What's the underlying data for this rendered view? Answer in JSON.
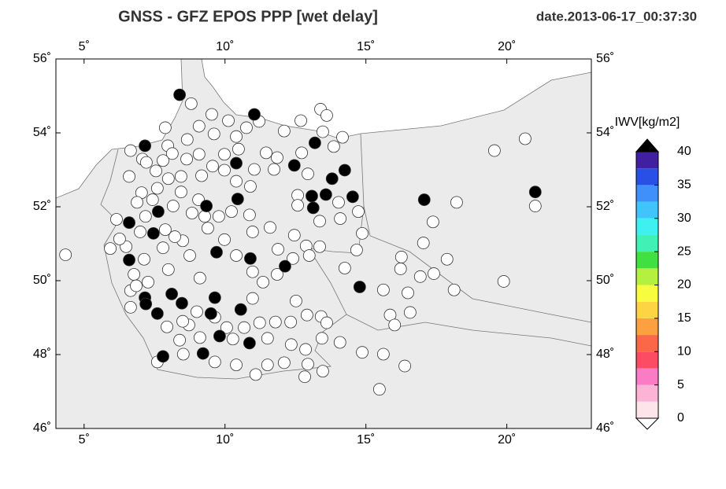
{
  "chart_data": {
    "type": "scatter",
    "title": "GNSS  -  GFZ EPOS PPP [wet delay]",
    "date": "date.2013-06-17_00:37:30",
    "xlim": [
      4,
      23
    ],
    "ylim": [
      46,
      56
    ],
    "xticks": [
      {
        "value": 5,
        "label": "5˚"
      },
      {
        "value": 10,
        "label": "10˚"
      },
      {
        "value": 15,
        "label": "15˚"
      },
      {
        "value": 20,
        "label": "20˚"
      }
    ],
    "yticks": [
      {
        "value": 46,
        "label": "46˚"
      },
      {
        "value": 48,
        "label": "48˚"
      },
      {
        "value": 50,
        "label": "50˚"
      },
      {
        "value": 52,
        "label": "52˚"
      },
      {
        "value": 54,
        "label": "54˚"
      },
      {
        "value": 56,
        "label": "56˚"
      }
    ],
    "colorbar": {
      "label": "IWV[kg/m2]",
      "lim": [
        0,
        40
      ],
      "ticks": [
        0,
        5,
        10,
        15,
        20,
        25,
        30,
        35,
        40
      ],
      "colors": [
        "#fde4ea",
        "#fcb4d6",
        "#fb7cc4",
        "#fb4c64",
        "#fb6848",
        "#fca040",
        "#fcd444",
        "#f8fc40",
        "#b4f040",
        "#40e040",
        "#40f0b4",
        "#40f0f0",
        "#40c4fc",
        "#4090fc",
        "#2850e4",
        "#4020a0"
      ],
      "over_color": "#000000",
      "under_color": "#ffffff"
    },
    "series": [
      {
        "color": "#ffffff",
        "x": [
          4.34,
          8.8,
          9.53,
          7.88,
          6.65,
          7.07,
          7.55,
          7.97,
          8.13,
          8.66,
          9.08,
          9.61,
          10.12,
          10.4,
          10.76,
          11.21,
          12.1,
          12.69,
          13.39,
          13.61,
          13.47,
          13.86,
          14.17,
          10.48,
          9.98,
          9.08,
          8.64,
          7.8,
          7.21,
          6.6,
          7.04,
          7.6,
          7.99,
          8.44,
          9.17,
          9.56,
          9.98,
          10.4,
          11.04,
          11.46,
          11.85,
          11.74,
          12.72,
          12.94,
          12.58,
          12.58,
          13.36,
          14.03,
          14.09,
          14.73,
          14.87,
          14.67,
          14.25,
          13.36,
          12.88,
          12.41,
          11.85,
          11.35,
          10.98,
          10.98,
          10.4,
          9.98,
          9.39,
          8.83,
          8.5,
          7.8,
          7.13,
          6.77,
          6.49,
          6.26,
          6.15,
          5.93,
          6.65,
          6.65,
          7.27,
          7.99,
          8.75,
          9.11,
          8.72,
          8.39,
          8.52,
          7.6,
          9.11,
          9.64,
          10.28,
          10.4,
          11.09,
          11.51,
          12.1,
          12.94,
          12.83,
          13.47,
          13.44,
          14.08,
          14.87,
          15.62,
          15.48,
          16.38,
          15.86,
          16.02,
          16.57,
          16.49,
          15.62,
          16.23,
          16.26,
          17.04,
          16.93,
          17.41,
          17.88,
          18.13,
          17.38,
          18.22,
          19.56,
          20.65,
          21.01,
          19.89,
          13.41,
          13.61,
          12.91,
          12.52,
          12.33,
          11.79,
          11.23,
          10.68,
          10.06,
          9.64,
          9.0,
          8.5,
          7.94,
          11.51,
          12.35,
          12.86,
          12.99,
          12.46,
          11.88,
          11.6,
          10.98,
          10.87,
          10.9,
          10.23,
          9.78,
          9.28,
          9.06,
          8.44,
          8.16,
          7.43,
          6.88,
          7.18,
          6.99,
          7.88,
          8.22,
          6.85
        ],
        "y": [
          50.7,
          54.79,
          54.5,
          54.14,
          53.52,
          53.29,
          52.97,
          53.65,
          53.44,
          53.82,
          54.18,
          53.97,
          54.33,
          53.9,
          54.14,
          54.31,
          54.05,
          54.33,
          54.64,
          54.47,
          54.03,
          53.63,
          53.88,
          53.56,
          53.42,
          53.42,
          53.29,
          53.25,
          53.2,
          52.82,
          52.38,
          52.5,
          52.76,
          52.82,
          52.84,
          53.1,
          52.99,
          52.69,
          53.01,
          53.46,
          53.33,
          53.01,
          53.46,
          52.89,
          52.31,
          52.04,
          51.61,
          52.12,
          51.68,
          51.87,
          51.28,
          50.83,
          50.34,
          50.92,
          50.94,
          50.6,
          50.17,
          49.96,
          49.52,
          50.24,
          50.68,
          51.11,
          51.42,
          51.83,
          51.08,
          50.89,
          50.58,
          50.17,
          50.92,
          51.13,
          51.66,
          50.87,
          49.73,
          49.28,
          49.96,
          50.3,
          50.68,
          50.07,
          48.8,
          48.39,
          48.01,
          47.8,
          48.46,
          47.8,
          48.42,
          47.72,
          47.46,
          47.72,
          47.78,
          47.74,
          47.4,
          47.55,
          48.44,
          48.33,
          48.06,
          48.01,
          47.06,
          47.69,
          49.07,
          48.8,
          49.14,
          49.67,
          49.75,
          50.32,
          50.64,
          51.02,
          50.11,
          50.19,
          50.58,
          49.75,
          51.59,
          52.12,
          53.52,
          53.84,
          52.02,
          49.98,
          49.03,
          48.86,
          49.07,
          49.45,
          48.88,
          48.88,
          48.86,
          48.73,
          48.73,
          49.01,
          49.16,
          48.9,
          48.75,
          48.44,
          48.27,
          48.14,
          50.68,
          51.23,
          50.85,
          51.44,
          51.32,
          51.78,
          52.55,
          51.87,
          51.74,
          51.74,
          52.19,
          52.4,
          52.02,
          52.19,
          52.12,
          51.74,
          51.32,
          51.38,
          51.19,
          49.86
        ]
      },
      {
        "color": "#000000",
        "x": [
          8.39,
          11.04,
          7.16,
          10.4,
          12.46,
          13.19,
          14.25,
          13.8,
          13.08,
          13.58,
          13.13,
          14.53,
          9.34,
          10.45,
          7.63,
          6.6,
          7.46,
          9.7,
          10.9,
          12.13,
          6.6,
          7.16,
          7.19,
          8.11,
          8.47,
          9.64,
          7.6,
          9.5,
          10.56,
          9.81,
          10.87,
          9.22,
          7.8,
          14.78,
          17.07,
          21.01
        ],
        "y": [
          55.03,
          54.5,
          53.65,
          53.18,
          53.12,
          53.73,
          52.99,
          52.76,
          52.29,
          52.33,
          51.97,
          52.27,
          52.02,
          52.21,
          51.87,
          51.57,
          51.28,
          50.77,
          50.6,
          50.39,
          50.56,
          49.54,
          49.37,
          49.64,
          49.39,
          49.54,
          49.11,
          49.11,
          49.22,
          48.5,
          48.31,
          48.03,
          47.95,
          49.83,
          52.19,
          52.4
        ]
      }
    ]
  }
}
